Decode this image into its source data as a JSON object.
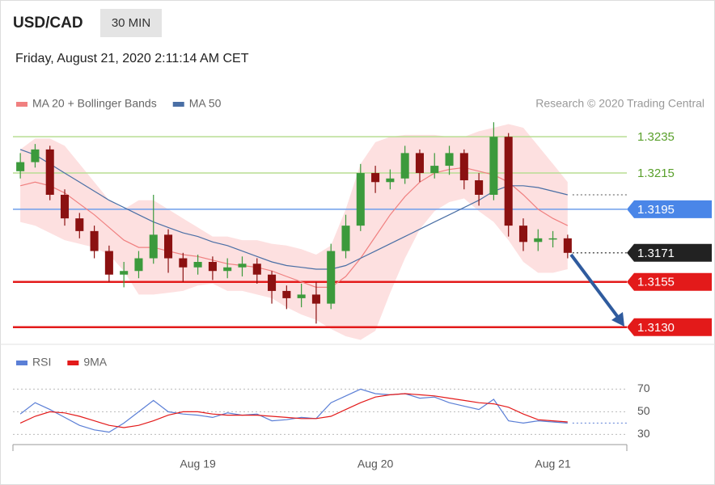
{
  "header": {
    "symbol": "USD/CAD",
    "interval": "30 MIN",
    "timestamp": "Friday, August 21, 2020 2:11:14 AM CET"
  },
  "chart_data": [
    {
      "type": "candlestick",
      "annotation": "Research © 2020 Trading Central",
      "x": [
        0,
        2,
        4,
        6,
        8,
        10,
        12,
        14,
        16,
        18,
        20,
        22,
        24,
        26,
        28,
        30,
        32,
        34,
        36,
        38,
        40,
        42,
        44,
        46,
        48,
        50,
        52,
        54,
        56,
        58,
        60,
        62,
        64,
        66,
        68,
        70,
        72,
        74
      ],
      "open": [
        1.3216,
        1.3221,
        1.3228,
        1.3203,
        1.319,
        1.3183,
        1.3172,
        1.3159,
        1.3161,
        1.3168,
        1.3181,
        1.3168,
        1.3163,
        1.3166,
        1.3161,
        1.3163,
        1.3165,
        1.3159,
        1.315,
        1.3146,
        1.3148,
        1.3143,
        1.3172,
        1.3186,
        1.3215,
        1.321,
        1.3212,
        1.3226,
        1.3215,
        1.3219,
        1.3226,
        1.3211,
        1.3203,
        1.3235,
        1.3186,
        1.3177,
        1.3179,
        1.3179
      ],
      "high": [
        1.3226,
        1.3231,
        1.323,
        1.3206,
        1.3193,
        1.3186,
        1.3175,
        1.3166,
        1.3172,
        1.3203,
        1.3184,
        1.3171,
        1.317,
        1.3169,
        1.3168,
        1.3169,
        1.3168,
        1.3161,
        1.3153,
        1.3154,
        1.3155,
        1.3176,
        1.3192,
        1.322,
        1.3219,
        1.3217,
        1.323,
        1.3228,
        1.3226,
        1.323,
        1.3228,
        1.3215,
        1.3243,
        1.3237,
        1.319,
        1.3184,
        1.3183,
        1.3181
      ],
      "low": [
        1.3212,
        1.3218,
        1.32,
        1.3186,
        1.3179,
        1.3168,
        1.3155,
        1.3152,
        1.3157,
        1.3165,
        1.316,
        1.3155,
        1.3159,
        1.3156,
        1.3157,
        1.3158,
        1.3154,
        1.3143,
        1.314,
        1.3141,
        1.3132,
        1.314,
        1.3168,
        1.3183,
        1.3204,
        1.3206,
        1.3209,
        1.321,
        1.3212,
        1.3214,
        1.3206,
        1.3197,
        1.32,
        1.318,
        1.3172,
        1.3172,
        1.3174,
        1.3168
      ],
      "close": [
        1.3221,
        1.3228,
        1.3203,
        1.319,
        1.3183,
        1.3172,
        1.3159,
        1.3161,
        1.3168,
        1.3181,
        1.3168,
        1.3163,
        1.3166,
        1.3161,
        1.3163,
        1.3165,
        1.3159,
        1.315,
        1.3146,
        1.3148,
        1.3143,
        1.3172,
        1.3186,
        1.3215,
        1.321,
        1.3212,
        1.3226,
        1.3215,
        1.3219,
        1.3226,
        1.3211,
        1.3203,
        1.3235,
        1.3186,
        1.3177,
        1.3179,
        1.3179,
        1.3171
      ],
      "up_color": "#3c9a3c",
      "down_color": "#8b1111",
      "xlim": [
        -1,
        82
      ],
      "ylim": [
        1.3121,
        1.3248
      ],
      "series": [
        {
          "name": "MA 20 + Bollinger Bands",
          "color": "#f08080",
          "band_color": "#fde0e0",
          "values": [
            1.3208,
            1.321,
            1.3208,
            1.3204,
            1.3198,
            1.3192,
            1.3185,
            1.3178,
            1.3174,
            1.3174,
            1.3172,
            1.317,
            1.3169,
            1.3167,
            1.3165,
            1.3164,
            1.3163,
            1.3161,
            1.3158,
            1.3155,
            1.3152,
            1.3152,
            1.3158,
            1.3168,
            1.318,
            1.3192,
            1.3202,
            1.321,
            1.3215,
            1.3217,
            1.3218,
            1.3216,
            1.3214,
            1.321,
            1.3203,
            1.3195,
            1.319,
            1.3186
          ],
          "upper": [
            1.3228,
            1.3234,
            1.3234,
            1.323,
            1.322,
            1.321,
            1.32,
            1.3195,
            1.32,
            1.32,
            1.3195,
            1.319,
            1.3185,
            1.318,
            1.318,
            1.3178,
            1.3178,
            1.3176,
            1.3175,
            1.3173,
            1.317,
            1.3175,
            1.3195,
            1.322,
            1.3232,
            1.3235,
            1.3236,
            1.3236,
            1.3236,
            1.3235,
            1.3235,
            1.3238,
            1.324,
            1.3242,
            1.324,
            1.323,
            1.322,
            1.321
          ],
          "lower": [
            1.3188,
            1.3186,
            1.3182,
            1.3178,
            1.3176,
            1.3174,
            1.317,
            1.3161,
            1.3148,
            1.3148,
            1.3149,
            1.315,
            1.3153,
            1.3154,
            1.315,
            1.315,
            1.3148,
            1.3146,
            1.3141,
            1.3137,
            1.3134,
            1.3129,
            1.3125,
            1.3123,
            1.3128,
            1.3149,
            1.3168,
            1.3184,
            1.3194,
            1.3199,
            1.3201,
            1.3194,
            1.3188,
            1.3178,
            1.3166,
            1.316,
            1.316,
            1.3162
          ]
        },
        {
          "name": "MA 50",
          "color": "#4a6fa5",
          "values": [
            1.3228,
            1.3225,
            1.322,
            1.3215,
            1.321,
            1.3205,
            1.32,
            1.3196,
            1.3192,
            1.3188,
            1.3185,
            1.3182,
            1.318,
            1.3177,
            1.3175,
            1.3172,
            1.3169,
            1.3166,
            1.3164,
            1.3163,
            1.3162,
            1.3162,
            1.3164,
            1.3168,
            1.3172,
            1.3176,
            1.318,
            1.3184,
            1.3188,
            1.3192,
            1.3196,
            1.32,
            1.3205,
            1.3208,
            1.3208,
            1.3207,
            1.3205,
            1.3203
          ]
        }
      ],
      "levels": [
        {
          "value": 1.3235,
          "color": "#5aa02c",
          "line_color": "#b8dd92",
          "style": "text",
          "line": "solid"
        },
        {
          "value": 1.3215,
          "color": "#5aa02c",
          "line_color": "#b8dd92",
          "style": "text",
          "line": "solid"
        },
        {
          "value": 1.3195,
          "color": "#4a86e8",
          "line_color": "#6d9eeb",
          "style": "box",
          "line": "solid"
        },
        {
          "value": 1.3171,
          "color": "#222222",
          "line_color": "#555555",
          "style": "box",
          "line": "dotted"
        },
        {
          "value": 1.3155,
          "color": "#e31a1a",
          "line_color": "#e31a1a",
          "style": "box",
          "line": "solid"
        },
        {
          "value": 1.313,
          "label": "1.3130",
          "color": "#e31a1a",
          "line_color": "#e31a1a",
          "style": "box",
          "line": "solid"
        }
      ]
    },
    {
      "type": "line",
      "x": [
        0,
        2,
        4,
        6,
        8,
        10,
        12,
        14,
        16,
        18,
        20,
        22,
        24,
        26,
        28,
        30,
        32,
        34,
        36,
        38,
        40,
        42,
        44,
        46,
        48,
        50,
        52,
        54,
        56,
        58,
        60,
        62,
        64,
        66,
        68,
        70,
        72,
        74
      ],
      "xlim": [
        -1,
        82
      ],
      "xticks": [
        {
          "value": 24,
          "label": "Aug 19"
        },
        {
          "value": 48,
          "label": "Aug 20"
        },
        {
          "value": 72,
          "label": "Aug 21"
        }
      ],
      "ylim": [
        21,
        81
      ],
      "yticks": [
        30,
        50,
        70
      ],
      "grid": true,
      "series": [
        {
          "name": "RSI",
          "color": "#5b7fd6",
          "values": [
            48,
            58,
            52,
            45,
            38,
            34,
            32,
            40,
            50,
            60,
            50,
            48,
            47,
            45,
            49,
            47,
            48,
            42,
            43,
            45,
            44,
            58,
            64,
            70,
            66,
            65,
            66,
            62,
            63,
            58,
            55,
            52,
            61,
            42,
            40,
            42,
            41,
            40
          ]
        },
        {
          "name": "9MA",
          "color": "#e31a1a",
          "values": [
            40,
            46,
            50,
            49,
            46,
            42,
            38,
            36,
            38,
            42,
            47,
            50,
            50,
            48,
            47,
            47,
            47,
            46,
            45,
            44,
            44,
            46,
            52,
            58,
            63,
            65,
            66,
            65,
            64,
            62,
            60,
            58,
            57,
            54,
            48,
            43,
            42,
            41
          ]
        }
      ]
    }
  ]
}
